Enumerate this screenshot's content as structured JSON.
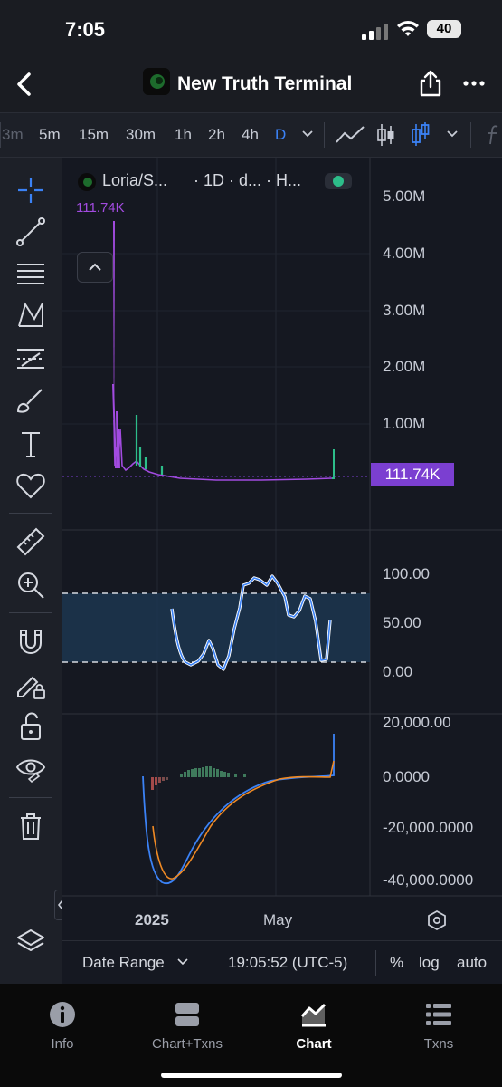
{
  "status": {
    "time": "7:05",
    "battery": "40"
  },
  "header": {
    "title": "New Truth Terminal"
  },
  "timeframes": [
    {
      "label": "3m",
      "state": "dim"
    },
    {
      "label": "5m",
      "state": "normal"
    },
    {
      "label": "15m",
      "state": "normal"
    },
    {
      "label": "30m",
      "state": "normal"
    },
    {
      "label": "1h",
      "state": "normal"
    },
    {
      "label": "2h",
      "state": "normal"
    },
    {
      "label": "4h",
      "state": "normal"
    },
    {
      "label": "D",
      "state": "active"
    }
  ],
  "chart": {
    "legend_symbol": "Loria/S...",
    "legend_details": "· 1D · d... · H...",
    "legend_value": "111.74K",
    "price_ticks": [
      "5.00M",
      "4.00M",
      "3.00M",
      "2.00M",
      "1.00M"
    ],
    "price_badge": "111.74K",
    "rsi_ticks": [
      "100.00",
      "50.00",
      "0.00"
    ],
    "macd_ticks": [
      "20,000.00",
      "0.0000",
      "-20,000.0000",
      "-40,000.0000"
    ],
    "x_ticks": [
      "2025",
      "May"
    ],
    "colors": {
      "accent": "#3b82f6",
      "volume": "#a24be0",
      "candle_up": "#2dbd8a",
      "macd_signal": "#f08a24",
      "badge": "#7b3fd1"
    }
  },
  "bottombar": {
    "date_range": "Date Range",
    "time": "19:05:52 (UTC-5)",
    "percent": "%",
    "log": "log",
    "auto": "auto"
  },
  "tabs": [
    {
      "label": "Info",
      "icon": "info-icon"
    },
    {
      "label": "Chart+Txns",
      "icon": "split-view-icon"
    },
    {
      "label": "Chart",
      "icon": "area-chart-icon"
    },
    {
      "label": "Txns",
      "icon": "list-icon"
    }
  ]
}
